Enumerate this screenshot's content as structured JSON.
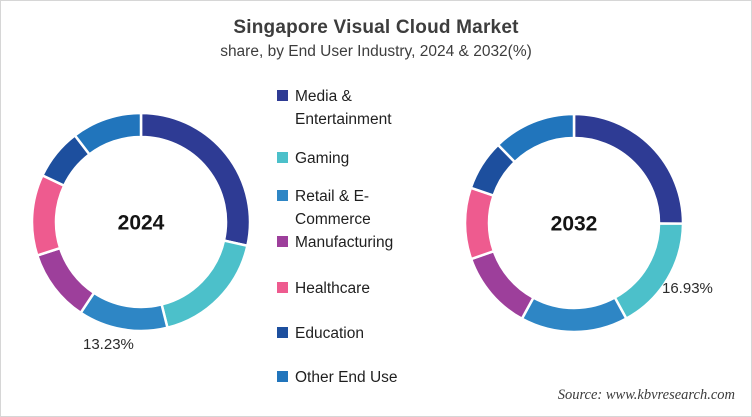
{
  "title": "Singapore Visual Cloud Market",
  "subtitle": "share, by End User Industry, 2024 & 2032(%)",
  "source": "Source: www.kbvresearch.com",
  "legend": {
    "items": [
      {
        "label": "Media & Entertainment",
        "color": "#2e3b94"
      },
      {
        "label": "Gaming",
        "color": "#4cc0ca"
      },
      {
        "label": "Retail & E-Commerce",
        "color": "#2e86c5"
      },
      {
        "label": "Manufacturing",
        "color": "#9d3f9b"
      },
      {
        "label": "Healthcare",
        "color": "#ee5b8f"
      },
      {
        "label": "Education",
        "color": "#1d4f9e"
      },
      {
        "label": "Other End Use",
        "color": "#2175bc"
      }
    ]
  },
  "chart_data": {
    "type": "pie",
    "variant": "donut",
    "title": "Singapore Visual Cloud Market",
    "subtitle": "share, by End User Industry, 2024 & 2032(%)",
    "categories": [
      "Media & Entertainment",
      "Gaming",
      "Retail & E-Commerce",
      "Manufacturing",
      "Healthcare",
      "Education",
      "Other End Use"
    ],
    "colors": [
      "#2e3b94",
      "#4cc0ca",
      "#2e86c5",
      "#9d3f9b",
      "#ee5b8f",
      "#1d4f9e",
      "#2175bc"
    ],
    "legend_position": "center",
    "start_angle_deg": 0,
    "direction": "clockwise",
    "charts": [
      {
        "year": "2024",
        "values": [
          28.5,
          17.6,
          13.23,
          10.7,
          12.0,
          7.6,
          10.37
        ],
        "labeled_slice": {
          "category": "Retail & E-Commerce",
          "value": 13.23,
          "text": "13.23%",
          "position": "bottom-left"
        }
      },
      {
        "year": "2032",
        "values": [
          25.1,
          16.93,
          15.9,
          11.7,
          10.6,
          7.5,
          12.27
        ],
        "labeled_slice": {
          "category": "Gaming",
          "value": 16.93,
          "text": "16.93%",
          "position": "right"
        }
      }
    ]
  }
}
